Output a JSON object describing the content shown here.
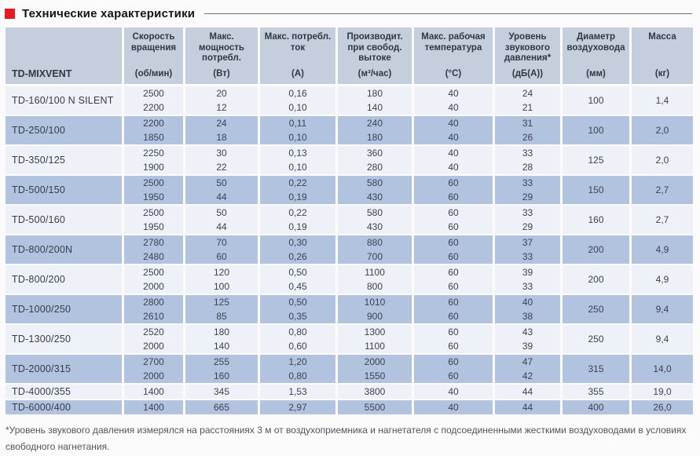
{
  "title": {
    "text": "Технические характеристики"
  },
  "table": {
    "model_header": "TD-MIXVENT",
    "columns": [
      {
        "name": "Скорость вращения",
        "unit": "(об/мин)"
      },
      {
        "name": "Макс. мощность потребл.",
        "unit": "(Вт)"
      },
      {
        "name": "Макс. потребл. ток",
        "unit": "(А)"
      },
      {
        "name": "Производит. при свобод. вытоке",
        "unit": "(м³/час)"
      },
      {
        "name": "Макс. рабочая температура",
        "unit": "(°С)"
      },
      {
        "name": "Уровень звукового давления*",
        "unit": "(дБ(А))"
      },
      {
        "name": "Диаметр воздуховода",
        "unit": "(мм)"
      },
      {
        "name": "Масса",
        "unit": "(кг)"
      }
    ],
    "rows": [
      {
        "model": "TD-160/100 N SILENT",
        "rpm": [
          "2500",
          "2200"
        ],
        "power": [
          "20",
          "12"
        ],
        "current": [
          "0,16",
          "0,10"
        ],
        "airflow": [
          "180",
          "140"
        ],
        "temp": [
          "40",
          "40"
        ],
        "noise": [
          "24",
          "21"
        ],
        "diameter": "100",
        "mass": "1,4"
      },
      {
        "model": "TD-250/100",
        "rpm": [
          "2200",
          "1850"
        ],
        "power": [
          "24",
          "18"
        ],
        "current": [
          "0,11",
          "0,10"
        ],
        "airflow": [
          "240",
          "180"
        ],
        "temp": [
          "40",
          "40"
        ],
        "noise": [
          "31",
          "26"
        ],
        "diameter": "100",
        "mass": "2,0"
      },
      {
        "model": "TD-350/125",
        "rpm": [
          "2250",
          "1900"
        ],
        "power": [
          "30",
          "22"
        ],
        "current": [
          "0,13",
          "0,10"
        ],
        "airflow": [
          "360",
          "280"
        ],
        "temp": [
          "40",
          "40"
        ],
        "noise": [
          "33",
          "28"
        ],
        "diameter": "125",
        "mass": "2,0"
      },
      {
        "model": "TD-500/150",
        "rpm": [
          "2500",
          "1950"
        ],
        "power": [
          "50",
          "44"
        ],
        "current": [
          "0,22",
          "0,19"
        ],
        "airflow": [
          "580",
          "430"
        ],
        "temp": [
          "60",
          "60"
        ],
        "noise": [
          "33",
          "29"
        ],
        "diameter": "150",
        "mass": "2,7"
      },
      {
        "model": "TD-500/160",
        "rpm": [
          "2500",
          "1950"
        ],
        "power": [
          "50",
          "44"
        ],
        "current": [
          "0,22",
          "0,19"
        ],
        "airflow": [
          "580",
          "430"
        ],
        "temp": [
          "60",
          "60"
        ],
        "noise": [
          "33",
          "29"
        ],
        "diameter": "160",
        "mass": "2,7"
      },
      {
        "model": "TD-800/200N",
        "rpm": [
          "2780",
          "2480"
        ],
        "power": [
          "70",
          "60"
        ],
        "current": [
          "0,30",
          "0,26"
        ],
        "airflow": [
          "880",
          "700"
        ],
        "temp": [
          "60",
          "60"
        ],
        "noise": [
          "37",
          "33"
        ],
        "diameter": "200",
        "mass": "4,9"
      },
      {
        "model": "TD-800/200",
        "rpm": [
          "2500",
          "2000"
        ],
        "power": [
          "120",
          "100"
        ],
        "current": [
          "0,50",
          "0,45"
        ],
        "airflow": [
          "1100",
          "800"
        ],
        "temp": [
          "60",
          "60"
        ],
        "noise": [
          "39",
          "33"
        ],
        "diameter": "200",
        "mass": "4,9"
      },
      {
        "model": "TD-1000/250",
        "rpm": [
          "2800",
          "2610"
        ],
        "power": [
          "125",
          "85"
        ],
        "current": [
          "0,50",
          "0,35"
        ],
        "airflow": [
          "1010",
          "900"
        ],
        "temp": [
          "60",
          "60"
        ],
        "noise": [
          "40",
          "38"
        ],
        "diameter": "250",
        "mass": "9,4"
      },
      {
        "model": "TD-1300/250",
        "rpm": [
          "2520",
          "2000"
        ],
        "power": [
          "180",
          "140"
        ],
        "current": [
          "0,80",
          "0,60"
        ],
        "airflow": [
          "1300",
          "1100"
        ],
        "temp": [
          "60",
          "60"
        ],
        "noise": [
          "43",
          "39"
        ],
        "diameter": "250",
        "mass": "9,4"
      },
      {
        "model": "TD-2000/315",
        "rpm": [
          "2700",
          "2000"
        ],
        "power": [
          "255",
          "160"
        ],
        "current": [
          "1,20",
          "0,80"
        ],
        "airflow": [
          "2000",
          "1550"
        ],
        "temp": [
          "60",
          "60"
        ],
        "noise": [
          "47",
          "42"
        ],
        "diameter": "315",
        "mass": "14,0"
      },
      {
        "model": "TD-4000/355",
        "rpm": [
          "1400"
        ],
        "power": [
          "345"
        ],
        "current": [
          "1,53"
        ],
        "airflow": [
          "3800"
        ],
        "temp": [
          "40"
        ],
        "noise": [
          "44"
        ],
        "diameter": "355",
        "mass": "19,0"
      },
      {
        "model": "TD-6000/400",
        "rpm": [
          "1400"
        ],
        "power": [
          "665"
        ],
        "current": [
          "2,97"
        ],
        "airflow": [
          "5500"
        ],
        "temp": [
          "40"
        ],
        "noise": [
          "44"
        ],
        "diameter": "400",
        "mass": "26,0"
      }
    ]
  },
  "footnote": "*Уровень звукового давления измерялся на расстояниях 3 м от воздухоприемника и нагнетателя с подсоединенными жесткими воздуховодами в условиях свободного нагнетания.",
  "colors": {
    "accent_red": "#e8191f",
    "header_bg": "#c5cedc",
    "row_light_bg": "#eef1f7",
    "row_dark_bg": "#b2c3e0",
    "text": "#3c434f"
  }
}
